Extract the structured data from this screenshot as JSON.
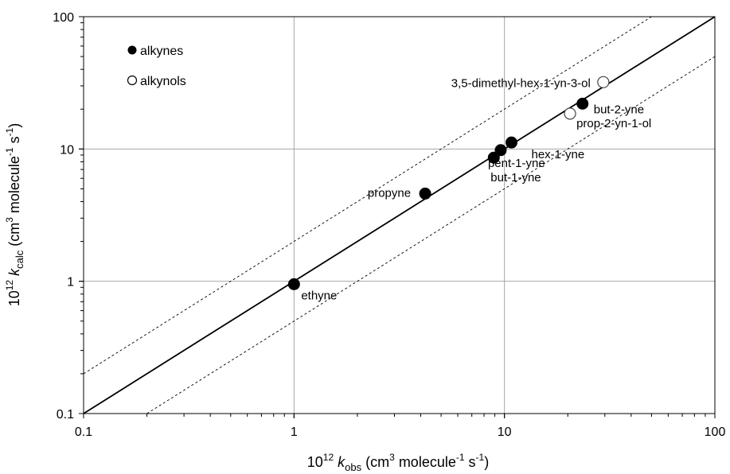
{
  "chart_data": {
    "type": "scatter",
    "xscale": "log",
    "yscale": "log",
    "xlim": [
      0.1,
      100
    ],
    "ylim": [
      0.1,
      100
    ],
    "grid": true,
    "xlabel": "10¹² k_obs (cm³ molecule⁻¹ s⁻¹)",
    "ylabel": "10¹² k_calc (cm³ molecule⁻¹ s⁻¹)",
    "xlabel_parts": {
      "prefix": "10",
      "prefix_sup": "12",
      "k": "k",
      "sub": "obs",
      "units_a": " (cm",
      "sup3": "3",
      "units_b": " molecule",
      "sup_m1": "-1",
      "units_c": " s",
      "sup_m1b": "-1",
      "units_d": ")"
    },
    "ylabel_parts": {
      "prefix": "10",
      "prefix_sup": "12",
      "k": "k",
      "sub": "calc",
      "units_a": " (cm",
      "sup3": "3",
      "units_b": " molecule",
      "sup_m1": "-1",
      "units_c": " s",
      "sup_m1b": "-1",
      "units_d": ")"
    },
    "x_ticks": [
      "0.1",
      "1",
      "10",
      "100"
    ],
    "y_ticks": [
      "0.1",
      "1",
      "10",
      "100"
    ],
    "reference_lines": [
      {
        "style": "solid",
        "factor": 1
      },
      {
        "style": "dashed",
        "factor": 2
      },
      {
        "style": "dashed",
        "factor": 0.5
      }
    ],
    "legend": {
      "placement": "top-left",
      "entries": [
        {
          "label": "alkynes",
          "marker": "filled-circle"
        },
        {
          "label": "alkynols",
          "marker": "open-circle"
        }
      ]
    },
    "series": [
      {
        "name": "alkynes",
        "marker": "filled",
        "points": [
          {
            "label": "ethyne",
            "x": 1.0,
            "y": 0.95
          },
          {
            "label": "propyne",
            "x": 4.2,
            "y": 4.6
          },
          {
            "label": "but-1-yne",
            "x": 8.9,
            "y": 8.6
          },
          {
            "label": "pent-1-yne",
            "x": 9.6,
            "y": 9.8
          },
          {
            "label": "hex-1-yne",
            "x": 10.8,
            "y": 11.2
          },
          {
            "label": "but-2-yne",
            "x": 23.5,
            "y": 22.0
          }
        ]
      },
      {
        "name": "alkynols",
        "marker": "open",
        "points": [
          {
            "label": "3,5-dimethyl-hex-1-yn-3-ol",
            "x": 29.5,
            "y": 32.0
          },
          {
            "label": "prop-2-yn-1-ol",
            "x": 20.5,
            "y": 18.5
          }
        ]
      }
    ]
  }
}
